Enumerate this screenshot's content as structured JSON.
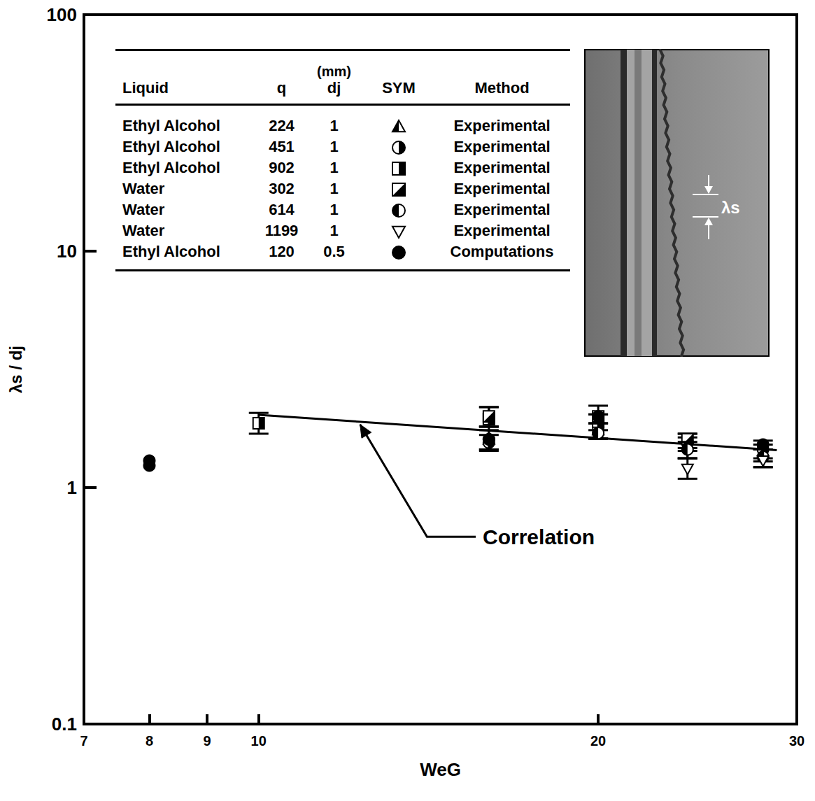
{
  "chart_data": {
    "type": "scatter",
    "xlabel": "WeG",
    "ylabel": "λs / dj",
    "log": true,
    "grid": false,
    "legend": "top-left",
    "xlim": [
      7,
      30
    ],
    "xticks": [
      7,
      8,
      9,
      10,
      20,
      30
    ],
    "ylim": [
      0.1,
      100
    ],
    "yticks": [
      0.1,
      1,
      10,
      100
    ],
    "legend_columns": [
      {
        "label": "Liquid"
      },
      {
        "label": "q"
      },
      {
        "label": "dj",
        "unit": "(mm)"
      },
      {
        "label": "SYM"
      },
      {
        "label": "Method"
      }
    ],
    "series": [
      {
        "name": "Ethyl Alcohol",
        "q": 224,
        "dj": 1,
        "method": "Experimental",
        "marker": "triangle-half",
        "color": "#000000",
        "x": [
          16,
          20,
          24,
          28
        ],
        "values": [
          1.6,
          1.75,
          1.5,
          1.4
        ],
        "error_low": [
          1.45,
          1.61,
          1.33,
          1.29
        ],
        "error_high": [
          1.75,
          1.87,
          1.63,
          1.52
        ]
      },
      {
        "name": "Ethyl Alcohol",
        "q": 451,
        "dj": 1,
        "method": "Experimental",
        "marker": "circle-half-right",
        "color": "#000000",
        "x": [
          16,
          20,
          24,
          28
        ],
        "values": [
          1.55,
          1.8,
          1.55,
          1.45
        ],
        "error_low": [
          1.43,
          1.61,
          1.43,
          1.33
        ],
        "error_high": [
          1.67,
          2.04,
          1.69,
          1.58
        ]
      },
      {
        "name": "Ethyl Alcohol",
        "q": 902,
        "dj": 1,
        "method": "Experimental",
        "marker": "square-half-right",
        "color": "#000000",
        "x": [
          10,
          16,
          20
        ],
        "values": [
          1.87,
          1.95,
          1.9
        ],
        "error_low": [
          1.69,
          1.81,
          1.75
        ],
        "error_high": [
          2.07,
          2.19,
          2.04
        ]
      },
      {
        "name": "Water",
        "q": 302,
        "dj": 1,
        "method": "Experimental",
        "marker": "square-diag",
        "color": "#000000",
        "x": [
          16,
          20,
          24
        ],
        "values": [
          2.0,
          2.0,
          1.6
        ],
        "error_low": [
          1.81,
          1.87,
          1.47
        ],
        "error_high": [
          2.19,
          2.22,
          1.69
        ]
      },
      {
        "name": "Water",
        "q": 614,
        "dj": 1,
        "method": "Experimental",
        "marker": "circle-half-left",
        "color": "#000000",
        "x": [
          16,
          20,
          24,
          28
        ],
        "values": [
          1.6,
          1.7,
          1.45,
          1.35
        ],
        "error_low": [
          1.45,
          1.61,
          1.33,
          1.22
        ],
        "error_high": [
          1.81,
          1.87,
          1.56,
          1.45
        ]
      },
      {
        "name": "Water",
        "q": 1199,
        "dj": 1,
        "method": "Experimental",
        "marker": "triangle-down",
        "color": "#000000",
        "x": [
          24,
          28
        ],
        "values": [
          1.2,
          1.3
        ],
        "error_low": [
          1.09,
          1.22
        ],
        "error_high": [
          1.33,
          1.45
        ]
      },
      {
        "name": "Ethyl Alcohol",
        "q": 120,
        "dj": 0.5,
        "method": "Computations",
        "marker": "circle-filled",
        "color": "#000000",
        "x": [
          8,
          8,
          16,
          20,
          28
        ],
        "values": [
          1.3,
          1.24,
          1.6,
          2.0,
          1.52
        ]
      },
      {
        "name": "Correlation",
        "type": "line",
        "line_style": "solid",
        "color": "#000000",
        "x": [
          10,
          28.8
        ],
        "values": [
          2.03,
          1.44
        ]
      }
    ],
    "annotations": [
      {
        "text": "Correlation",
        "x": 15.8,
        "y": 0.62,
        "arrow": [
          [
            14.1,
            0.62
          ],
          [
            12.3,
            1.85
          ]
        ]
      }
    ],
    "inset": {
      "label": "λs"
    }
  }
}
